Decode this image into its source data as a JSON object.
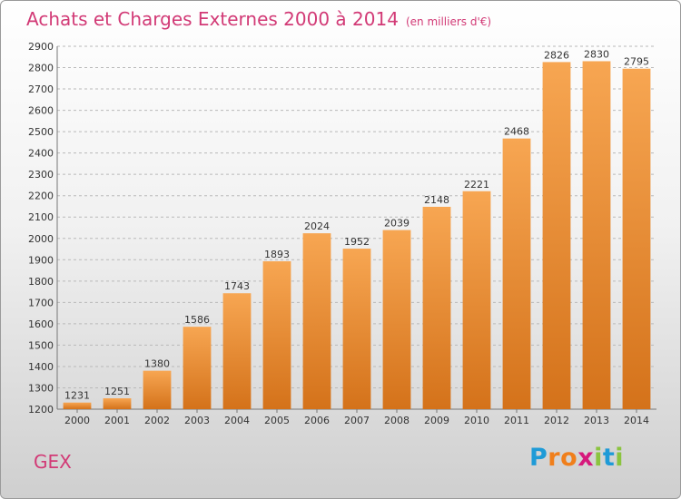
{
  "title": "Achats et Charges Externes 2000 à 2014",
  "subtitle": "(en milliers d'€)",
  "place_label": "GEX",
  "logo": {
    "letters": [
      "P",
      "r",
      "o",
      "x",
      "i",
      "t",
      "i"
    ],
    "colors": [
      "#1f9bd7",
      "#f07f1b",
      "#f07f1b",
      "#d6197c",
      "#8bc43f",
      "#1f9bd7",
      "#8bc43f"
    ]
  },
  "colors": {
    "accent": "#d23a76",
    "bar_light": "#f7a652",
    "bar_dark": "#d4721a",
    "grid": "#b9b9b9"
  },
  "chart_data": {
    "type": "bar",
    "categories": [
      "2000",
      "2001",
      "2002",
      "2003",
      "2004",
      "2005",
      "2006",
      "2007",
      "2008",
      "2009",
      "2010",
      "2011",
      "2012",
      "2013",
      "2014"
    ],
    "values": [
      1231,
      1251,
      1380,
      1586,
      1743,
      1893,
      2024,
      1952,
      2039,
      2148,
      2221,
      2468,
      2826,
      2830,
      2795
    ],
    "ylim": [
      1200,
      2900
    ],
    "yticks": [
      1200,
      1300,
      1400,
      1500,
      1600,
      1700,
      1800,
      1900,
      2000,
      2100,
      2200,
      2300,
      2400,
      2500,
      2600,
      2700,
      2800,
      2900
    ],
    "grid": true,
    "xlabel": "",
    "ylabel": ""
  }
}
